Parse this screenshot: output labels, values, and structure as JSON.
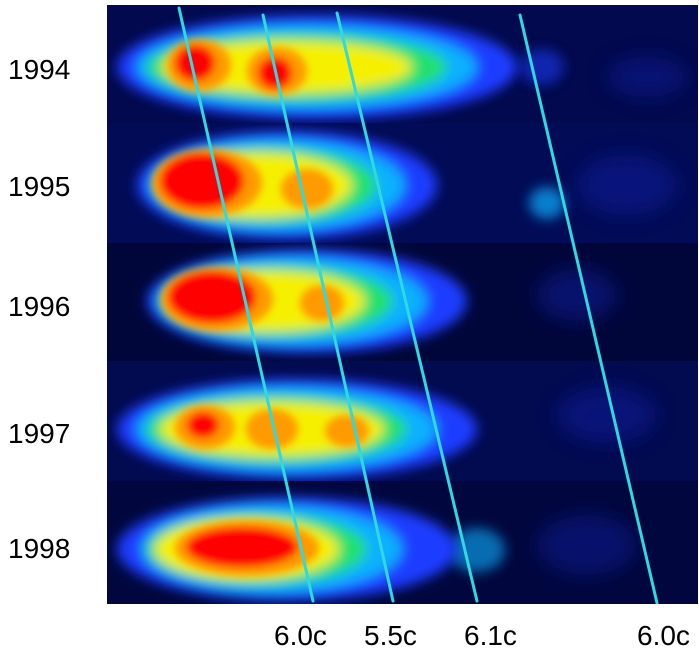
{
  "years": [
    "1994",
    "1995",
    "1996",
    "1997",
    "1998"
  ],
  "speeds": [
    "6.0c",
    "5.5c",
    "6.1c",
    "6.0c"
  ],
  "colors": {
    "background": "#02084a",
    "background_dark": "#010636",
    "component_line": "#30d8e0",
    "core": "#ff0000",
    "halo_orange": "#ff9a00",
    "halo_yellow": "#f6f000",
    "halo_green": "#20e070",
    "halo_cyan": "#10b0ff",
    "halo_blue": "#1a3cff"
  }
}
